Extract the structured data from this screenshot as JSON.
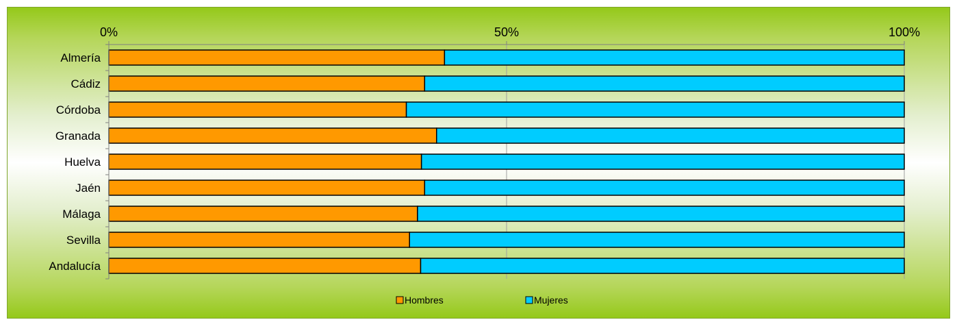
{
  "chart_data": {
    "type": "bar",
    "orientation": "horizontal",
    "stacked": "percent",
    "categories": [
      "Almería",
      "Cádiz",
      "Córdoba",
      "Granada",
      "Huelva",
      "Jaén",
      "Málaga",
      "Sevilla",
      "Andalucía"
    ],
    "series": [
      {
        "name": "Hombres",
        "color": "#ff9900",
        "values": [
          42.2,
          39.7,
          37.4,
          41.2,
          39.3,
          39.7,
          38.8,
          37.8,
          39.2
        ]
      },
      {
        "name": "Mujeres",
        "color": "#00ccff",
        "values": [
          57.8,
          60.3,
          62.6,
          58.8,
          60.7,
          60.3,
          61.2,
          62.2,
          60.8
        ]
      }
    ],
    "xlim": [
      0,
      100
    ],
    "x_ticks": [
      "0%",
      "50%",
      "100%"
    ],
    "x_tick_values": [
      0,
      50,
      100
    ],
    "xaxis_position": "top",
    "grid": true,
    "legend_position": "bottom-center",
    "title": "",
    "xlabel": "",
    "ylabel": ""
  }
}
